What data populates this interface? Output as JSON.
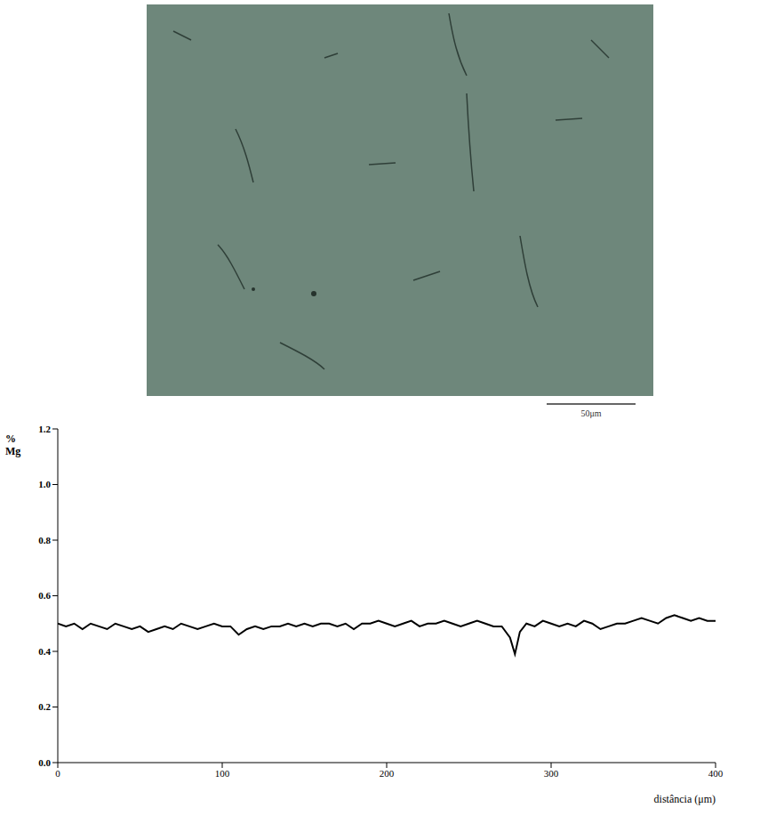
{
  "chart_data": {
    "type": "line",
    "ylabel": "% Mg",
    "xlabel": "distância (μm)",
    "x": [
      0,
      5,
      10,
      15,
      20,
      25,
      30,
      35,
      40,
      45,
      50,
      55,
      60,
      65,
      70,
      75,
      80,
      85,
      90,
      95,
      100,
      105,
      110,
      115,
      120,
      125,
      130,
      135,
      140,
      145,
      150,
      155,
      160,
      165,
      170,
      175,
      180,
      185,
      190,
      195,
      200,
      205,
      210,
      215,
      220,
      225,
      230,
      235,
      240,
      245,
      250,
      255,
      260,
      265,
      270,
      275,
      278,
      281,
      285,
      290,
      295,
      300,
      305,
      310,
      315,
      320,
      325,
      330,
      335,
      340,
      345,
      350,
      355,
      360,
      365,
      370,
      375,
      380,
      385,
      390,
      395,
      400
    ],
    "values": [
      0.5,
      0.49,
      0.5,
      0.48,
      0.5,
      0.49,
      0.48,
      0.5,
      0.49,
      0.48,
      0.49,
      0.47,
      0.48,
      0.49,
      0.48,
      0.5,
      0.49,
      0.48,
      0.49,
      0.5,
      0.49,
      0.49,
      0.46,
      0.48,
      0.49,
      0.48,
      0.49,
      0.49,
      0.5,
      0.49,
      0.5,
      0.49,
      0.5,
      0.5,
      0.49,
      0.5,
      0.48,
      0.5,
      0.5,
      0.51,
      0.5,
      0.49,
      0.5,
      0.51,
      0.49,
      0.5,
      0.5,
      0.51,
      0.5,
      0.49,
      0.5,
      0.51,
      0.5,
      0.49,
      0.49,
      0.45,
      0.39,
      0.47,
      0.5,
      0.49,
      0.51,
      0.5,
      0.49,
      0.5,
      0.49,
      0.51,
      0.5,
      0.48,
      0.49,
      0.5,
      0.5,
      0.51,
      0.52,
      0.51,
      0.5,
      0.52,
      0.53,
      0.52,
      0.51,
      0.52,
      0.51,
      0.51
    ],
    "color": "#000000",
    "xlim": [
      0,
      400
    ],
    "xticks": [
      0,
      100,
      200,
      300,
      400
    ],
    "ylim": [
      0,
      1.2
    ],
    "yticks": [
      {
        "value": 0,
        "label": "0.0"
      },
      0.2,
      0.4,
      0.6,
      0.8,
      {
        "value": 1,
        "label": "1.0"
      },
      1.2
    ],
    "grid": false
  },
  "micrograph": {
    "scale_bar_label": "50μm"
  }
}
